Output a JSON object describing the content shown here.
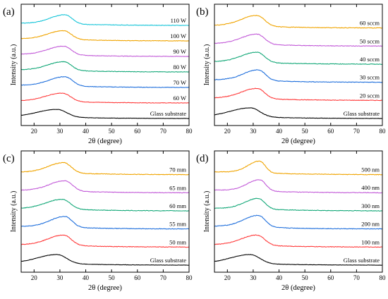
{
  "colors": [
    "#000000",
    "#ff3b3b",
    "#1f6fdc",
    "#13a878",
    "#c25ad8",
    "#f0a400",
    "#14c4d8"
  ],
  "chart_data": [
    {
      "panel": "(a)",
      "type": "line",
      "xlabel": "2θ (degree)",
      "ylabel": "Intensity (a.u.)",
      "xlim": [
        15,
        80
      ],
      "xticks": [
        20,
        30,
        40,
        50,
        60,
        70,
        80
      ],
      "curve": {
        "x": [
          15,
          20,
          25,
          28,
          30,
          32,
          33,
          35,
          38,
          40,
          45,
          50,
          55,
          60,
          65,
          70,
          75,
          80
        ],
        "y": [
          0.3,
          0.55,
          0.8,
          0.95,
          1.0,
          0.98,
          0.9,
          0.6,
          0.35,
          0.28,
          0.22,
          0.18,
          0.15,
          0.12,
          0.1,
          0.08,
          0.06,
          0.05
        ]
      },
      "series": [
        {
          "name": "Glass substrate",
          "peak": 29,
          "width": 1.0,
          "offset": 0.0,
          "scale": 1.0
        },
        {
          "name": "60 W",
          "peak": 31,
          "width": 0.85,
          "offset": 1.0,
          "scale": 1.1
        },
        {
          "name": "70 W",
          "peak": 32,
          "width": 0.8,
          "offset": 2.0,
          "scale": 1.2
        },
        {
          "name": "80 W",
          "peak": 31.5,
          "width": 0.8,
          "offset": 3.0,
          "scale": 1.15
        },
        {
          "name": "90 W",
          "peak": 31.5,
          "width": 0.8,
          "offset": 4.0,
          "scale": 1.15
        },
        {
          "name": "100 W",
          "peak": 31.5,
          "width": 0.8,
          "offset": 5.0,
          "scale": 1.15
        },
        {
          "name": "110 W",
          "peak": 32,
          "width": 0.75,
          "offset": 6.0,
          "scale": 1.2
        }
      ]
    },
    {
      "panel": "(b)",
      "type": "line",
      "xlabel": "2θ (degree)",
      "ylabel": "Intensity (a.u.)",
      "xlim": [
        15,
        80
      ],
      "xticks": [
        20,
        30,
        40,
        50,
        60,
        70,
        80
      ],
      "series": [
        {
          "name": "Glass substrate",
          "peak": 29,
          "width": 1.0,
          "offset": 0.0,
          "scale": 1.0
        },
        {
          "name": "20 sccm",
          "peak": 31.5,
          "width": 0.8,
          "offset": 1.0,
          "scale": 1.15
        },
        {
          "name": "30 sccm",
          "peak": 32,
          "width": 0.75,
          "offset": 2.0,
          "scale": 1.2
        },
        {
          "name": "40 sccm",
          "peak": 31.5,
          "width": 0.8,
          "offset": 3.0,
          "scale": 1.15
        },
        {
          "name": "50 sccm",
          "peak": 31.5,
          "width": 0.8,
          "offset": 4.0,
          "scale": 1.15
        },
        {
          "name": "60 sccm",
          "peak": 31.5,
          "width": 0.8,
          "offset": 5.0,
          "scale": 1.2
        }
      ]
    },
    {
      "panel": "(c)",
      "type": "line",
      "xlabel": "2θ (degree)",
      "ylabel": "Intensity (a.u.)",
      "xlim": [
        15,
        80
      ],
      "xticks": [
        20,
        30,
        40,
        50,
        60,
        70,
        80
      ],
      "series": [
        {
          "name": "Glass substrate",
          "peak": 29,
          "width": 1.0,
          "offset": 0.0,
          "scale": 1.0
        },
        {
          "name": "50 mm",
          "peak": 31.5,
          "width": 0.8,
          "offset": 1.0,
          "scale": 1.15
        },
        {
          "name": "55 mm",
          "peak": 32,
          "width": 0.75,
          "offset": 2.0,
          "scale": 1.2
        },
        {
          "name": "60 mm",
          "peak": 31,
          "width": 0.85,
          "offset": 3.0,
          "scale": 1.1
        },
        {
          "name": "65 mm",
          "peak": 32,
          "width": 0.8,
          "offset": 4.0,
          "scale": 1.15
        },
        {
          "name": "70 mm",
          "peak": 31.5,
          "width": 0.8,
          "offset": 5.0,
          "scale": 1.15
        }
      ]
    },
    {
      "panel": "(d)",
      "type": "line",
      "xlabel": "2θ (degree)",
      "ylabel": "Intensity (a.u.)",
      "xlim": [
        15,
        80
      ],
      "xticks": [
        20,
        30,
        40,
        50,
        60,
        70,
        80
      ],
      "series": [
        {
          "name": "Glass substrate",
          "peak": 29,
          "width": 1.0,
          "offset": 0.0,
          "scale": 1.0
        },
        {
          "name": "100 nm",
          "peak": 31.5,
          "width": 0.8,
          "offset": 1.0,
          "scale": 1.15
        },
        {
          "name": "200 nm",
          "peak": 32,
          "width": 0.75,
          "offset": 2.0,
          "scale": 1.3
        },
        {
          "name": "300 nm",
          "peak": 32,
          "width": 0.7,
          "offset": 3.0,
          "scale": 1.2
        },
        {
          "name": "400 nm",
          "peak": 32.5,
          "width": 0.65,
          "offset": 4.0,
          "scale": 1.25
        },
        {
          "name": "500 nm",
          "peak": 32.5,
          "width": 0.6,
          "offset": 5.0,
          "scale": 1.3
        }
      ]
    }
  ]
}
